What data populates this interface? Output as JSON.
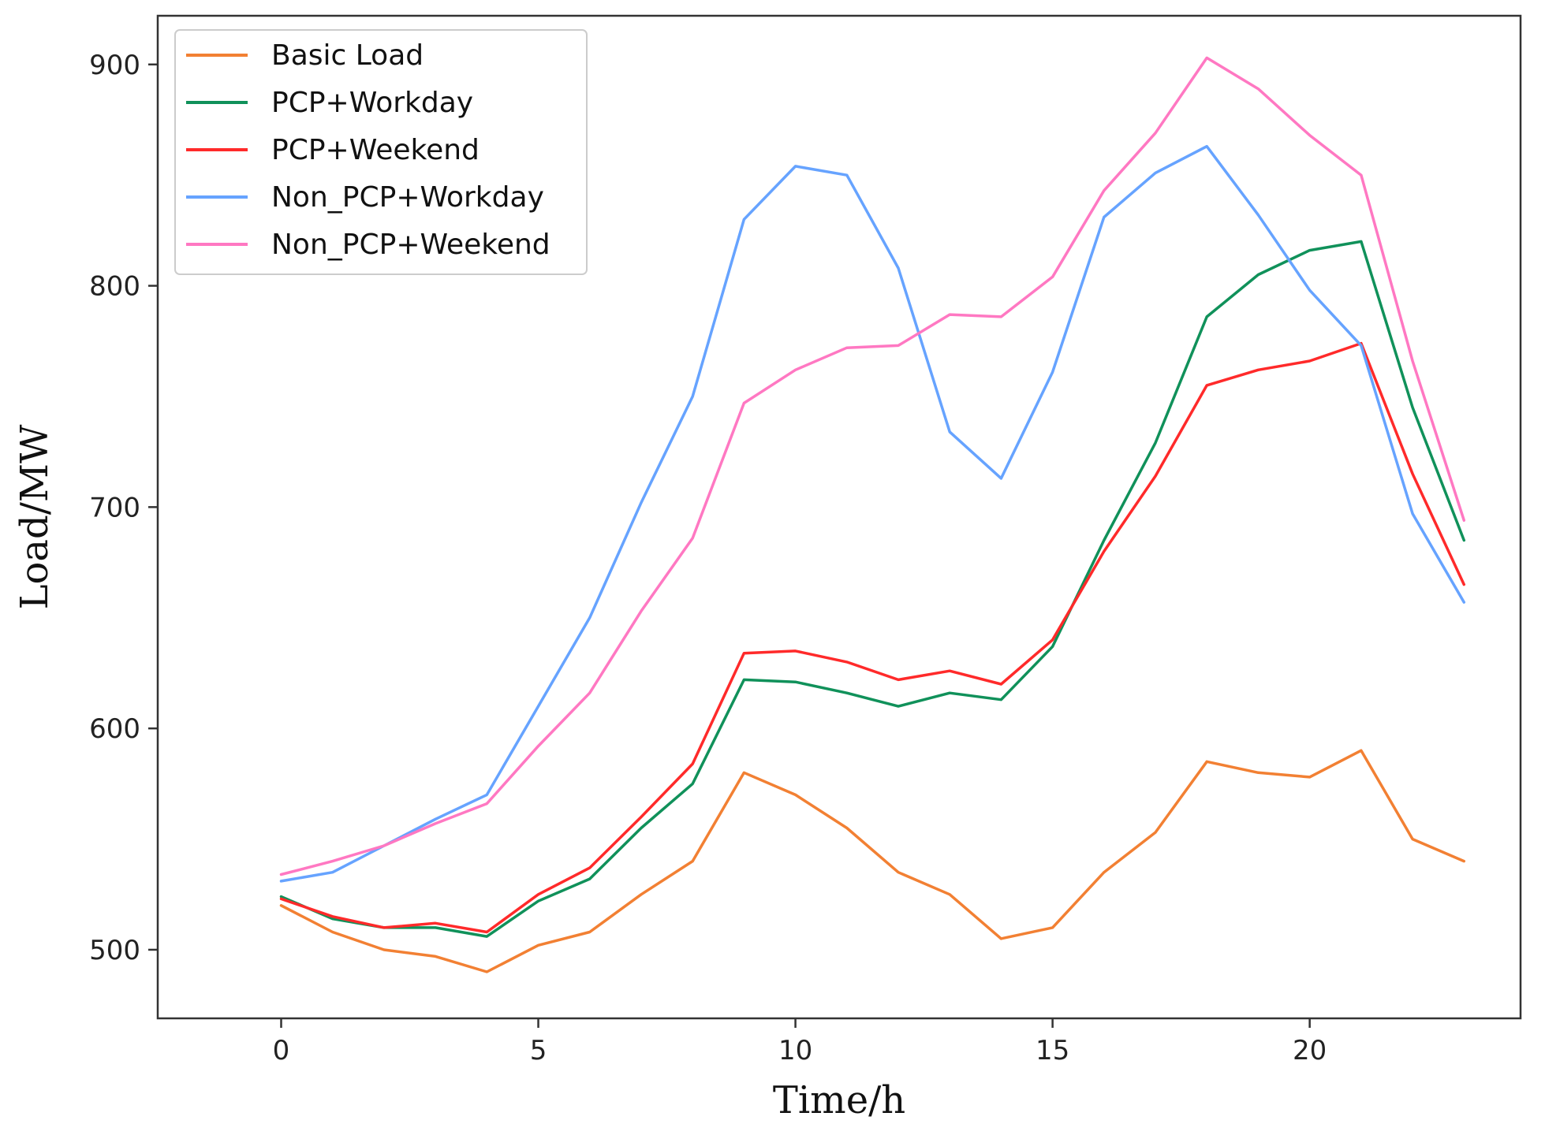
{
  "chart_data": {
    "type": "line",
    "title": "",
    "xlabel": "Time/h",
    "ylabel": "Load/MW",
    "xlim": [
      -2.4,
      24.1
    ],
    "ylim": [
      469,
      922
    ],
    "xticks": [
      0,
      5,
      10,
      15,
      20
    ],
    "yticks": [
      500,
      600,
      700,
      800,
      900
    ],
    "grid": false,
    "legend_position": "top-left",
    "x": [
      0,
      1,
      2,
      3,
      4,
      5,
      6,
      7,
      8,
      9,
      10,
      11,
      12,
      13,
      14,
      15,
      16,
      17,
      18,
      19,
      20,
      21,
      22,
      23
    ],
    "series": [
      {
        "name": "Basic Load",
        "color": "#f28033",
        "values": [
          520,
          508,
          500,
          497,
          490,
          502,
          508,
          525,
          540,
          580,
          570,
          555,
          535,
          525,
          505,
          510,
          535,
          553,
          585,
          580,
          578,
          590,
          550,
          540
        ]
      },
      {
        "name": "PCP+Workday",
        "color": "#10915a",
        "values": [
          524,
          514,
          510,
          510,
          506,
          522,
          532,
          555,
          575,
          622,
          621,
          616,
          610,
          616,
          613,
          637,
          685,
          729,
          786,
          805,
          816,
          820,
          745,
          685
        ]
      },
      {
        "name": "PCP+Weekend",
        "color": "#ff2a2a",
        "values": [
          523,
          515,
          510,
          512,
          508,
          525,
          537,
          560,
          584,
          634,
          635,
          630,
          622,
          626,
          620,
          640,
          680,
          714,
          755,
          762,
          766,
          774,
          715,
          665
        ]
      },
      {
        "name": "Non_PCP+Workday",
        "color": "#66a3ff",
        "values": [
          531,
          535,
          547,
          559,
          570,
          610,
          650,
          702,
          750,
          830,
          854,
          850,
          808,
          734,
          713,
          761,
          831,
          851,
          863,
          832,
          798,
          773,
          697,
          657
        ]
      },
      {
        "name": "Non_PCP+Weekend",
        "color": "#ff78c2",
        "values": [
          534,
          540,
          547,
          557,
          566,
          592,
          616,
          653,
          686,
          747,
          762,
          772,
          773,
          787,
          786,
          804,
          843,
          869,
          903,
          889,
          868,
          850,
          766,
          694
        ]
      }
    ]
  }
}
